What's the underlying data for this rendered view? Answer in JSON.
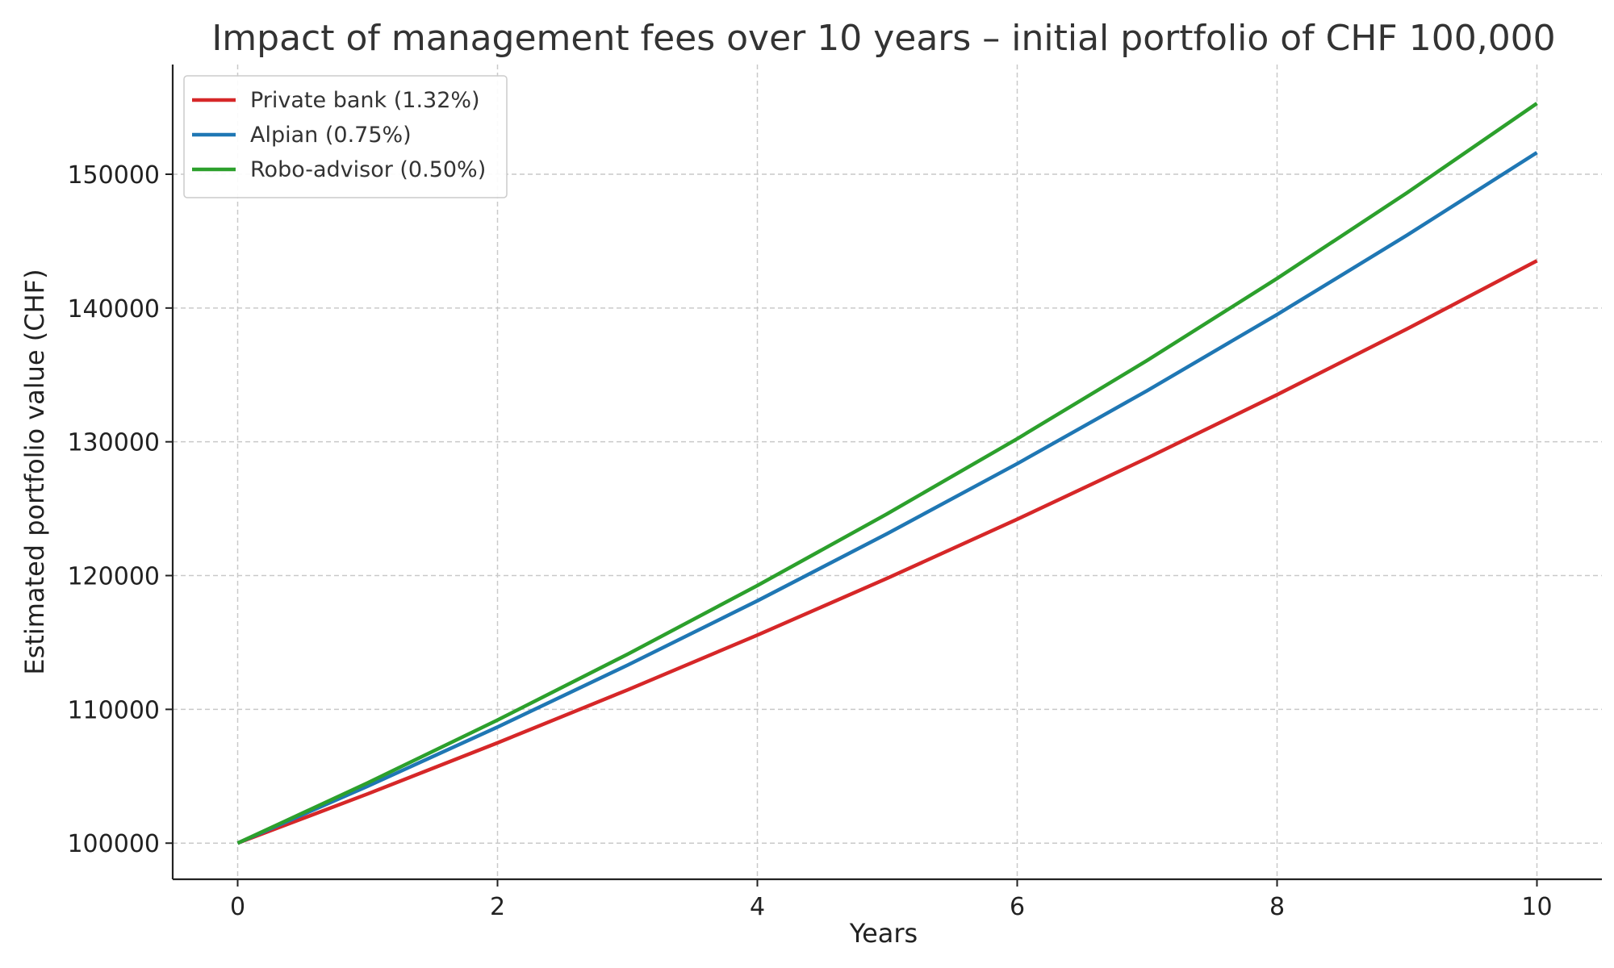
{
  "chart_data": {
    "type": "line",
    "title": "Impact of management fees over 10 years – initial portfolio of CHF 100,000",
    "xlabel": "Years",
    "ylabel": "Estimated portfolio value (CHF)",
    "xlim": [
      -0.5,
      10.5
    ],
    "ylim": [
      97300,
      158200
    ],
    "x": [
      0,
      1,
      2,
      3,
      4,
      5,
      6,
      7,
      8,
      9,
      10
    ],
    "x_ticks": [
      0,
      2,
      4,
      6,
      8,
      10
    ],
    "y_ticks": [
      100000,
      110000,
      120000,
      130000,
      140000,
      150000
    ],
    "grid": true,
    "legend_position": "top-left",
    "series": [
      {
        "name": "Private bank (1.32%)",
        "color": "#d62728",
        "values": [
          100000,
          103680,
          107495,
          111451,
          115552,
          119804,
          124213,
          128784,
          133523,
          138437,
          143532
        ]
      },
      {
        "name": "Alpian (0.75%)",
        "color": "#1f77b4",
        "values": [
          100000,
          104250,
          108681,
          113300,
          118115,
          123135,
          128368,
          133824,
          139512,
          145441,
          151622
        ]
      },
      {
        "name": "Robo-advisor (0.50%)",
        "color": "#2ca02c",
        "values": [
          100000,
          104500,
          109203,
          114117,
          119252,
          124618,
          130226,
          136086,
          142210,
          148610,
          155297
        ]
      }
    ]
  }
}
